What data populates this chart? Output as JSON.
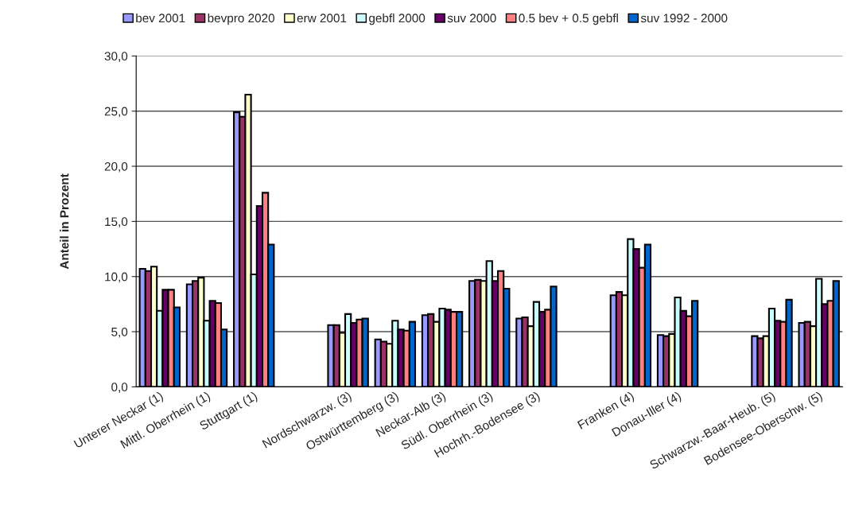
{
  "chart_data": {
    "type": "bar",
    "ylabel": "Anteil in Prozent",
    "legend": "top",
    "grid": "y",
    "categories": [
      "Unterer Neckar (1)",
      "Mittl. Oberrhein (1)",
      "Stuttgart (1)",
      null,
      "Nordschwarzw. (3)",
      "Ostwürttemberg (3)",
      "Neckar-Alb (3)",
      "Südl. Oberrhein (3)",
      "Hochrh.-Bodensee (3)",
      null,
      "Franken (4)",
      "Donau-Iller (4)",
      null,
      "Schwarzw.-Baar-Heub. (5)",
      "Bodensee-Oberschw. (5)"
    ],
    "ylim": [
      0,
      30
    ],
    "yticks": [
      {
        "value": 0,
        "label": "0,0"
      },
      {
        "value": 5,
        "label": "5,0"
      },
      {
        "value": 10,
        "label": "10,0"
      },
      {
        "value": 15,
        "label": "15,0"
      },
      {
        "value": 20,
        "label": "20,0"
      },
      {
        "value": 25,
        "label": "25,0"
      },
      {
        "value": 30,
        "label": "30,0"
      }
    ],
    "series": [
      {
        "name": "bev 2001",
        "color": "#9999ff",
        "values": [
          10.7,
          9.3,
          24.9,
          null,
          5.6,
          4.3,
          6.5,
          9.6,
          6.2,
          null,
          8.3,
          4.7,
          null,
          4.6,
          5.8
        ]
      },
      {
        "name": "bevpro 2020",
        "color": "#993366",
        "values": [
          10.5,
          9.6,
          24.5,
          null,
          5.6,
          4.1,
          6.6,
          9.7,
          6.3,
          null,
          8.6,
          4.6,
          null,
          4.4,
          5.9
        ]
      },
      {
        "name": "erw 2001",
        "color": "#ffffcc",
        "values": [
          10.9,
          9.9,
          26.5,
          null,
          4.9,
          3.9,
          5.9,
          9.6,
          5.5,
          null,
          8.3,
          4.8,
          null,
          4.6,
          5.5
        ]
      },
      {
        "name": "gebfl 2000",
        "color": "#ccffff",
        "values": [
          6.9,
          6.0,
          10.2,
          null,
          6.6,
          6.0,
          7.1,
          11.4,
          7.7,
          null,
          13.4,
          8.1,
          null,
          7.1,
          9.8
        ]
      },
      {
        "name": "suv 2000",
        "color": "#660066",
        "values": [
          8.8,
          7.8,
          16.4,
          null,
          5.8,
          5.2,
          7.0,
          9.6,
          6.8,
          null,
          12.5,
          6.9,
          null,
          6.0,
          7.5
        ]
      },
      {
        "name": "0.5 bev + 0.5 gebfl",
        "color": "#ff8080",
        "values": [
          8.8,
          7.6,
          17.6,
          null,
          6.1,
          5.1,
          6.8,
          10.5,
          7.0,
          null,
          10.8,
          6.4,
          null,
          5.9,
          7.8
        ]
      },
      {
        "name": "suv 1992 - 2000",
        "color": "#0066cc",
        "values": [
          7.2,
          5.2,
          12.9,
          null,
          6.2,
          5.9,
          6.8,
          8.9,
          9.1,
          null,
          12.9,
          7.8,
          null,
          7.9,
          9.6
        ]
      }
    ]
  }
}
